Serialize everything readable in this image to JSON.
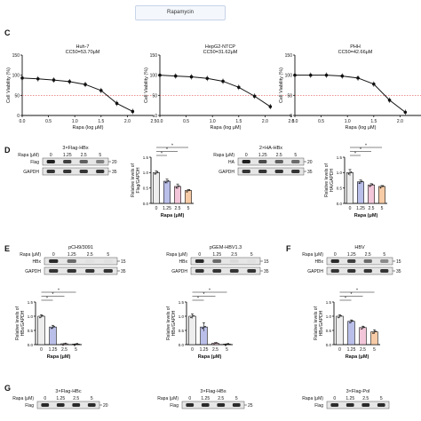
{
  "top_label": "Rapamycin",
  "panels": [
    "C",
    "D",
    "E",
    "F",
    "G"
  ],
  "chart_data": [
    {
      "panel": "C",
      "type": "line",
      "title": "Huh-7",
      "subtitle": "CC50=53.70μM",
      "xlabel": "Rapa (log μM)",
      "ylabel": "Cell Viability (%)",
      "xlim": [
        0,
        2.5
      ],
      "ylim": [
        0,
        150
      ],
      "xticks": [
        "0.0",
        "0.5",
        "1.0",
        "1.5",
        "2.0",
        "2.5"
      ],
      "yticks": [
        "0",
        "50",
        "100",
        "150"
      ],
      "reference_line_y": 50,
      "x": [
        0,
        0.3,
        0.6,
        0.9,
        1.2,
        1.5,
        1.8,
        2.1
      ],
      "y": [
        93,
        91,
        88,
        84,
        77,
        62,
        30,
        10
      ]
    },
    {
      "panel": "C",
      "type": "line",
      "title": "HepG2-NTCP",
      "subtitle": "CC50=31.62μM",
      "xlabel": "Rapa (log μM)",
      "ylabel": "Cell Viability (%)",
      "xlim": [
        0,
        2.5
      ],
      "ylim": [
        0,
        150
      ],
      "xticks": [
        "0.0",
        "0.5",
        "1.0",
        "1.5",
        "2.0",
        "2.5"
      ],
      "yticks": [
        "0",
        "50",
        "100",
        "150"
      ],
      "reference_line_y": 50,
      "x": [
        0,
        0.3,
        0.6,
        0.9,
        1.2,
        1.5,
        1.8,
        2.1
      ],
      "y": [
        100,
        98,
        96,
        92,
        85,
        70,
        48,
        22
      ]
    },
    {
      "panel": "C",
      "type": "line",
      "title": "PHH",
      "subtitle": "CC50=42.66μM",
      "xlabel": "Rapa (log μM)",
      "ylabel": "Cell Viability (%)",
      "xlim": [
        0,
        2.5
      ],
      "ylim": [
        0,
        150
      ],
      "xticks": [
        "0.0",
        "0.5",
        "1.0",
        "1.5",
        "2.0",
        "2.5"
      ],
      "yticks": [
        "0",
        "50",
        "100",
        "150"
      ],
      "reference_line_y": 50,
      "x": [
        0,
        0.3,
        0.6,
        0.9,
        1.2,
        1.5,
        1.8,
        2.1
      ],
      "y": [
        100,
        100,
        100,
        98,
        93,
        78,
        38,
        8
      ]
    },
    {
      "panel": "D",
      "type": "bar",
      "categories": [
        "0",
        "1.25",
        "2.5",
        "5"
      ],
      "values": [
        1.0,
        0.72,
        0.55,
        0.42
      ],
      "errors": [
        0.06,
        0.07,
        0.08,
        0.03
      ],
      "xlabel": "Rapa (μM)",
      "ylabel": "Relative levels of Flag/GAPDH",
      "ylim": [
        0,
        1.5
      ],
      "yticks": [
        "0.0",
        "0.5",
        "1.0",
        "1.5"
      ],
      "colors": [
        "#eeeeee",
        "#b9bfe9",
        "#f2c6d8",
        "#f6cba6"
      ]
    },
    {
      "panel": "D",
      "type": "bar",
      "categories": [
        "0",
        "1.25",
        "2.5",
        "5"
      ],
      "values": [
        1.0,
        0.7,
        0.6,
        0.55
      ],
      "errors": [
        0.1,
        0.06,
        0.04,
        0.03
      ],
      "xlabel": "Rapa (μM)",
      "ylabel": "Relative levels of HA/GAPDH",
      "ylim": [
        0,
        1.5
      ],
      "yticks": [
        "0.0",
        "0.5",
        "1.0",
        "1.5"
      ],
      "colors": [
        "#eeeeee",
        "#b9bfe9",
        "#f2c6d8",
        "#f6cba6"
      ]
    },
    {
      "panel": "E",
      "type": "bar",
      "categories": [
        "0",
        "1.25",
        "2.5",
        "5"
      ],
      "values": [
        1.0,
        0.62,
        0.03,
        0.02
      ],
      "errors": [
        0.05,
        0.06,
        0.01,
        0.01
      ],
      "xlabel": "Rapa (μM)",
      "ylabel": "Relative levels of HBx/GAPDH",
      "ylim": [
        0,
        1.5
      ],
      "yticks": [
        "0.0",
        "0.5",
        "1.0",
        "1.5"
      ],
      "colors": [
        "#eeeeee",
        "#b9bfe9",
        "#f2c6d8",
        "#f6cba6"
      ]
    },
    {
      "panel": "E",
      "type": "bar",
      "categories": [
        "0",
        "1.25",
        "2.5",
        "5"
      ],
      "values": [
        1.0,
        0.62,
        0.05,
        0.02
      ],
      "errors": [
        0.08,
        0.15,
        0.02,
        0.01
      ],
      "xlabel": "Rapa (μM)",
      "ylabel": "Relative levels of HBx/GAPDH",
      "ylim": [
        0,
        1.5
      ],
      "yticks": [
        "0.0",
        "0.5",
        "1.0",
        "1.5"
      ],
      "colors": [
        "#eeeeee",
        "#b9bfe9",
        "#f2c6d8",
        "#f6cba6"
      ]
    },
    {
      "panel": "F",
      "type": "bar",
      "categories": [
        "0",
        "1.25",
        "2.5",
        "5"
      ],
      "values": [
        1.0,
        0.82,
        0.6,
        0.45
      ],
      "errors": [
        0.05,
        0.05,
        0.05,
        0.07
      ],
      "xlabel": "Rapa (μM)",
      "ylabel": "Relative levels of HBx/GAPDH",
      "ylim": [
        0,
        1.5
      ],
      "yticks": [
        "0.0",
        "0.5",
        "1.0",
        "1.5"
      ],
      "colors": [
        "#eeeeee",
        "#b9bfe9",
        "#f2c6d8",
        "#f6cba6"
      ]
    }
  ],
  "blots": {
    "D1": {
      "title": "3×Flag-HBx",
      "header": "Rapa (μM)",
      "lanes": [
        "0",
        "1.25",
        "2.5",
        "5"
      ],
      "rows": [
        {
          "label": "Flag",
          "marker": "20",
          "intensity": [
            0.95,
            0.8,
            0.65,
            0.5
          ]
        },
        {
          "label": "GAPDH",
          "marker": "35",
          "intensity": [
            0.85,
            0.85,
            0.85,
            0.85
          ]
        }
      ]
    },
    "D2": {
      "title": "2×HA-HBx",
      "header": "Rapa (μM)",
      "lanes": [
        "0",
        "1.25",
        "2.5",
        "5"
      ],
      "rows": [
        {
          "label": "HA",
          "marker": "20",
          "intensity": [
            0.95,
            0.75,
            0.65,
            0.6
          ]
        },
        {
          "label": "GAPDH",
          "marker": "35",
          "intensity": [
            0.85,
            0.85,
            0.85,
            0.85
          ]
        }
      ]
    },
    "E1": {
      "title": "pCH9/3091",
      "header": "Rapa (μM)",
      "lanes": [
        "0",
        "1.25",
        "2.5",
        "5"
      ],
      "rows": [
        {
          "label": "HBx",
          "marker": "15",
          "intensity": [
            0.9,
            0.6,
            0.05,
            0.05
          ]
        },
        {
          "label": "GAPDH",
          "marker": "35",
          "intensity": [
            0.85,
            0.85,
            0.85,
            0.85
          ]
        }
      ]
    },
    "E2": {
      "title": "pGEM-HBV1.3",
      "header": "Rapa (μM)",
      "lanes": [
        "0",
        "1.25",
        "2.5",
        "5"
      ],
      "rows": [
        {
          "label": "HBx",
          "marker": "15",
          "intensity": [
            0.9,
            0.6,
            0.08,
            0.05
          ]
        },
        {
          "label": "GAPDH",
          "marker": "35",
          "intensity": [
            0.85,
            0.85,
            0.85,
            0.85
          ]
        }
      ]
    },
    "F": {
      "title": "HBV",
      "header": "Rapa (μM)",
      "lanes": [
        "0",
        "1.25",
        "2.5",
        "5"
      ],
      "rows": [
        {
          "label": "HBx",
          "marker": "15",
          "intensity": [
            0.9,
            0.8,
            0.6,
            0.45
          ]
        },
        {
          "label": "GAPDH",
          "marker": "35",
          "intensity": [
            0.85,
            0.85,
            0.85,
            0.85
          ]
        }
      ]
    },
    "G1": {
      "title": "3×Flag-HBc",
      "header": "Rapa (μM)",
      "lanes": [
        "0",
        "1.25",
        "2.5",
        "5"
      ],
      "rows": [
        {
          "label": "Flag",
          "marker": "20",
          "intensity": [
            0.9,
            0.9,
            0.9,
            0.9
          ]
        }
      ]
    },
    "G2": {
      "title": "3×Flag-HBs",
      "header": "Rapa (μM)",
      "lanes": [
        "0",
        "1.25",
        "2.5",
        "5"
      ],
      "rows": [
        {
          "label": "Flag",
          "marker": "25",
          "intensity": [
            0.9,
            0.9,
            0.9,
            0.9
          ]
        }
      ]
    },
    "G3": {
      "title": "3×Flag-Pol",
      "header": "Rapa (μM)",
      "lanes": [
        "0",
        "1.25",
        "2.5",
        "5"
      ],
      "rows": [
        {
          "label": "Flag",
          "marker": "",
          "intensity": [
            0.9,
            0.9,
            0.9,
            0.9
          ]
        }
      ]
    }
  },
  "significance_mark": "*",
  "colors": {
    "curve": "#111111",
    "reference": "#e05050",
    "ink": "#111111"
  }
}
